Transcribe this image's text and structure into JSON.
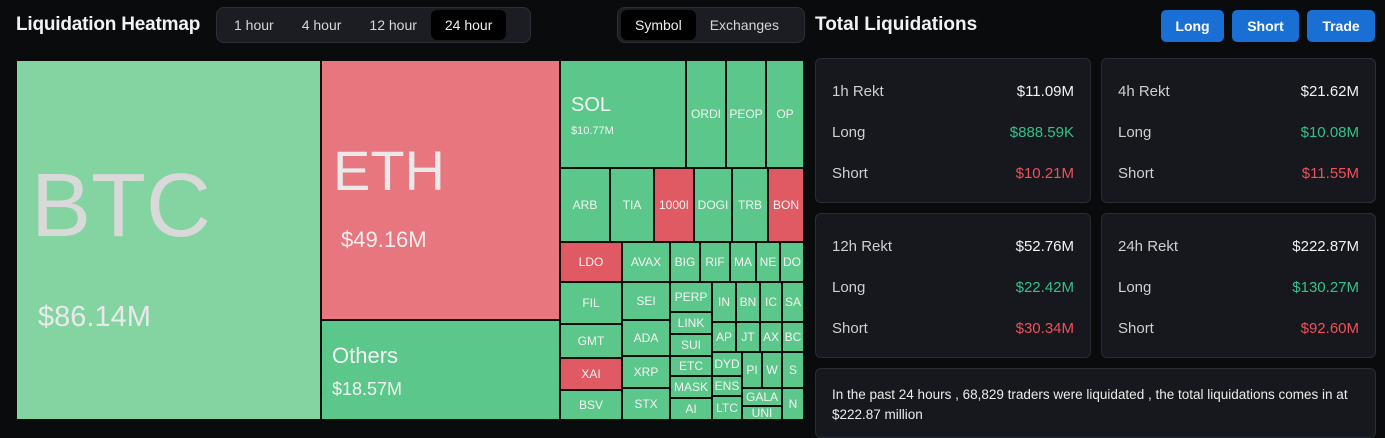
{
  "header": {
    "title": "Liquidation Heatmap",
    "time_options": [
      "1 hour",
      "4 hour",
      "12 hour",
      "24 hour"
    ],
    "active_time": "24 hour",
    "group_options": [
      "Symbol",
      "Exchanges"
    ],
    "active_group": "Symbol"
  },
  "totals": {
    "title": "Total Liquidations",
    "buttons": [
      "Long",
      "Short",
      "Trade"
    ]
  },
  "heatmap": {
    "btc": {
      "symbol": "BTC",
      "value": "$86.14M"
    },
    "eth": {
      "symbol": "ETH",
      "value": "$49.16M"
    },
    "others": {
      "symbol": "Others",
      "value": "$18.57M"
    },
    "sol": {
      "symbol": "SOL",
      "value": "$10.77M"
    },
    "small": [
      "ORDI",
      "PEOP",
      "OP",
      "ARB",
      "TIA",
      "1000I",
      "DOGI",
      "TRB",
      "BON",
      "LDO",
      "AVAX",
      "BIG",
      "RIF",
      "MA",
      "NE",
      "DO",
      "FIL",
      "SEI",
      "PERP",
      "IN",
      "BN",
      "IC",
      "SA",
      "LINK",
      "AP",
      "JT",
      "AX",
      "BC",
      "GMT",
      "ADA",
      "SUI",
      "DYD",
      "PI",
      "W",
      "S",
      "XAI",
      "XRP",
      "ETC",
      "MASK",
      "ENS",
      "BSV",
      "STX",
      "AI",
      "LTC",
      "GALA",
      "UNI",
      "N"
    ]
  },
  "cards": [
    {
      "period": "1h Rekt",
      "total": "$11.09M",
      "long_label": "Long",
      "long": "$888.59K",
      "short_label": "Short",
      "short": "$10.21M"
    },
    {
      "period": "4h Rekt",
      "total": "$21.62M",
      "long_label": "Long",
      "long": "$10.08M",
      "short_label": "Short",
      "short": "$11.55M"
    },
    {
      "period": "12h Rekt",
      "total": "$52.76M",
      "long_label": "Long",
      "long": "$22.42M",
      "short_label": "Short",
      "short": "$30.34M"
    },
    {
      "period": "24h Rekt",
      "total": "$222.87M",
      "long_label": "Long",
      "long": "$130.27M",
      "short_label": "Short",
      "short": "$92.60M"
    }
  ],
  "note": "In the past 24 hours , 68,829 traders were liquidated , the total liquidations comes in at $222.87 million",
  "colors": {
    "long": "#5cc78a",
    "short": "#e8767f",
    "accent": "#1a6fd4"
  }
}
